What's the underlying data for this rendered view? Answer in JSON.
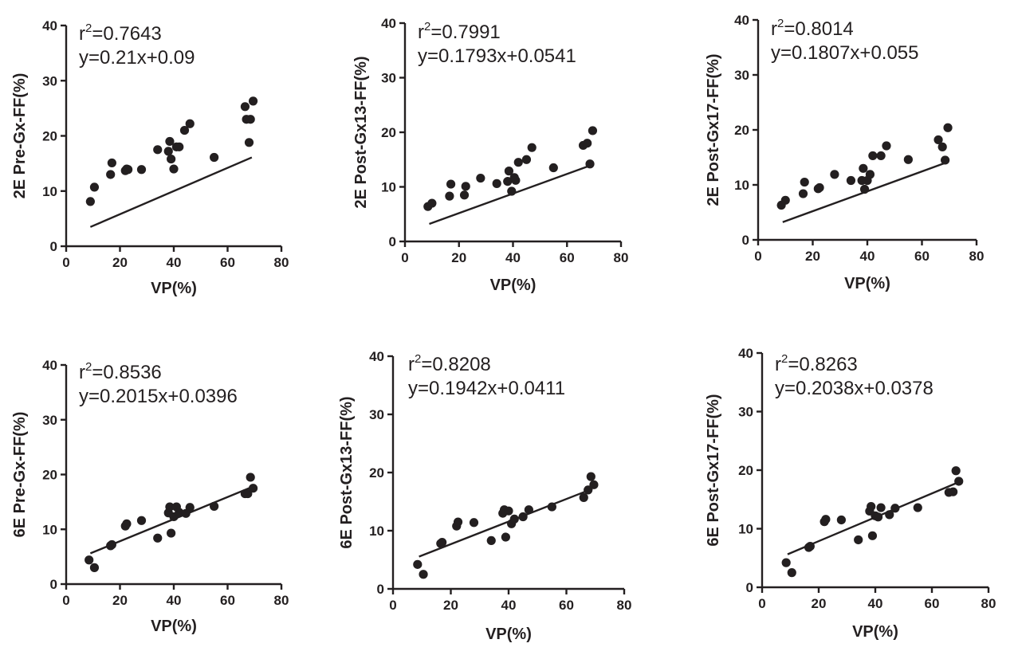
{
  "chart_data": [
    {
      "type": "scatter",
      "title": "",
      "xlabel": "VP(%)",
      "ylabel": "2E Pre-Gx-FF(%)",
      "xlim": [
        0,
        80
      ],
      "ylim": [
        0,
        40
      ],
      "xticks": [
        "0",
        "20",
        "40",
        "60",
        "80"
      ],
      "yticks": [
        "0",
        "10",
        "20",
        "30",
        "40"
      ],
      "annotation_r2_prefix": "r",
      "annotation_r2_sup": "2",
      "annotation_r2_value": "=0.7643",
      "annotation_eq": "y=0.21x+0.09",
      "fit": {
        "slope": 0.21,
        "intercept": 0.09,
        "x_range": [
          9,
          69
        ]
      },
      "points": {
        "x": [
          9,
          10.5,
          16.5,
          17,
          22,
          22.5,
          23,
          28,
          34,
          38,
          38.5,
          39,
          40,
          41,
          42,
          44,
          46,
          55,
          66.5,
          67,
          68,
          68.5,
          69.5
        ],
        "y": [
          8.1,
          10.7,
          13,
          15.1,
          13.7,
          14,
          13.9,
          13.9,
          17.5,
          17.2,
          19,
          15.8,
          14,
          18,
          18,
          21,
          22.2,
          16.1,
          25.3,
          23,
          18.8,
          23,
          26.3
        ]
      }
    },
    {
      "type": "scatter",
      "title": "",
      "xlabel": "VP(%)",
      "ylabel": "2E Post-Gx13-FF(%)",
      "xlim": [
        0,
        80
      ],
      "ylim": [
        0,
        40
      ],
      "xticks": [
        "0",
        "20",
        "40",
        "60",
        "80"
      ],
      "yticks": [
        "0",
        "10",
        "20",
        "30",
        "40"
      ],
      "annotation_r2_prefix": "r",
      "annotation_r2_sup": "2",
      "annotation_r2_value": "=0.7991",
      "annotation_eq": "y=0.1793x+0.0541",
      "fit": {
        "slope": 0.1793,
        "intercept": 0.0541,
        "x_range": [
          9,
          69
        ]
      },
      "points": {
        "x": [
          8.5,
          10,
          16.5,
          17,
          22,
          22.5,
          28,
          34,
          38,
          38.5,
          39.5,
          40.5,
          41,
          42,
          45,
          47,
          55,
          66,
          67.5,
          68.5,
          69.5
        ],
        "y": [
          6.4,
          7,
          8.3,
          10.5,
          8.5,
          10.1,
          11.6,
          10.6,
          11,
          12.9,
          9.2,
          11.7,
          11.2,
          14.5,
          15,
          17.2,
          13.5,
          17.6,
          18,
          14.2,
          20.3
        ]
      }
    },
    {
      "type": "scatter",
      "title": "",
      "xlabel": "VP(%)",
      "ylabel": "2E Post-Gx17-FF(%)",
      "xlim": [
        0,
        80
      ],
      "ylim": [
        0,
        40
      ],
      "xticks": [
        "0",
        "20",
        "40",
        "60",
        "80"
      ],
      "yticks": [
        "0",
        "10",
        "20",
        "30",
        "40"
      ],
      "annotation_r2_prefix": "r",
      "annotation_r2_sup": "2",
      "annotation_r2_value": "=0.8014",
      "annotation_eq": "y=0.1807x+0.055",
      "fit": {
        "slope": 0.1807,
        "intercept": 0.055,
        "x_range": [
          9,
          69
        ]
      },
      "points": {
        "x": [
          8.5,
          10,
          16.5,
          17,
          22,
          22.5,
          28,
          34,
          38,
          38.5,
          39,
          40,
          41,
          42,
          45,
          47,
          55,
          66,
          67.5,
          68.5,
          69.5
        ],
        "y": [
          6.3,
          7.2,
          8.4,
          10.5,
          9.3,
          9.5,
          11.9,
          10.8,
          10.8,
          13,
          9.2,
          10.8,
          11.9,
          15.3,
          15.3,
          17.1,
          14.6,
          18.2,
          16.9,
          14.5,
          20.4
        ]
      }
    },
    {
      "type": "scatter",
      "title": "",
      "xlabel": "VP(%)",
      "ylabel": "6E Pre-Gx-FF(%)",
      "xlim": [
        0,
        80
      ],
      "ylim": [
        0,
        40
      ],
      "xticks": [
        "0",
        "20",
        "40",
        "60",
        "80"
      ],
      "yticks": [
        "0",
        "10",
        "20",
        "30",
        "40"
      ],
      "annotation_r2_prefix": "r",
      "annotation_r2_sup": "2",
      "annotation_r2_value": "=0.8536",
      "annotation_eq": "y=0.2015x+0.0396",
      "fit": {
        "slope": 0.2015,
        "intercept": 0.0396,
        "x_range": [
          9,
          69
        ]
      },
      "points": {
        "x": [
          8.5,
          10.5,
          16.5,
          17,
          22,
          22.5,
          28,
          34,
          38,
          38.5,
          39,
          40,
          41,
          42,
          44.5,
          46,
          55,
          66.5,
          67.5,
          68.5,
          69.5
        ],
        "y": [
          4.4,
          3,
          7,
          7.2,
          10.6,
          11,
          11.6,
          8.4,
          13,
          14.1,
          9.3,
          12.3,
          14.1,
          13.1,
          12.9,
          14,
          14.2,
          16.5,
          16.5,
          19.5,
          17.5
        ]
      }
    },
    {
      "type": "scatter",
      "title": "",
      "xlabel": "VP(%)",
      "ylabel": "6E Post-Gx13-FF(%)",
      "xlim": [
        0,
        80
      ],
      "ylim": [
        0,
        40
      ],
      "xticks": [
        "0",
        "20",
        "40",
        "60",
        "80"
      ],
      "yticks": [
        "0",
        "10",
        "20",
        "30",
        "40"
      ],
      "annotation_r2_prefix": "r",
      "annotation_r2_sup": "2",
      "annotation_r2_value": "=0.8208",
      "annotation_eq": "y=0.1942x+0.0411",
      "fit": {
        "slope": 0.1942,
        "intercept": 0.0411,
        "x_range": [
          9,
          69
        ]
      },
      "points": {
        "x": [
          8.5,
          10.5,
          16.5,
          17,
          22,
          22.5,
          28,
          34,
          38,
          38.5,
          39,
          40,
          41,
          42,
          45,
          47,
          55,
          66,
          67.5,
          68.5,
          69.5
        ],
        "y": [
          4.2,
          2.5,
          7.8,
          8,
          10.8,
          11.5,
          11.4,
          8.3,
          13,
          13.6,
          8.9,
          13.4,
          11.2,
          12,
          12.4,
          13.6,
          14.1,
          15.7,
          17,
          19.3,
          17.9
        ]
      }
    },
    {
      "type": "scatter",
      "title": "",
      "xlabel": "VP(%)",
      "ylabel": "6E Post-Gx17-FF(%)",
      "xlim": [
        0,
        80
      ],
      "ylim": [
        0,
        40
      ],
      "xticks": [
        "0",
        "20",
        "40",
        "60",
        "80"
      ],
      "yticks": [
        "0",
        "10",
        "20",
        "30",
        "40"
      ],
      "annotation_r2_prefix": "r",
      "annotation_r2_sup": "2",
      "annotation_r2_value": "=0.8263",
      "annotation_eq": "y=0.2038x+0.0378",
      "fit": {
        "slope": 0.2038,
        "intercept": 0.0378,
        "x_range": [
          9,
          69
        ]
      },
      "points": {
        "x": [
          8.5,
          10.5,
          16.5,
          17,
          22,
          22.5,
          28,
          34,
          38,
          38.5,
          39,
          40,
          41,
          42,
          45,
          47,
          55,
          66,
          67.5,
          68.5,
          69.5
        ],
        "y": [
          4.2,
          2.5,
          6.8,
          7,
          11.2,
          11.6,
          11.5,
          8.1,
          13,
          13.8,
          8.8,
          12.2,
          12,
          13.6,
          12.4,
          13.5,
          13.6,
          16.2,
          16.3,
          19.9,
          18.1
        ]
      }
    }
  ],
  "style": {
    "ink_color": "#231f20",
    "background": "#ffffff"
  }
}
